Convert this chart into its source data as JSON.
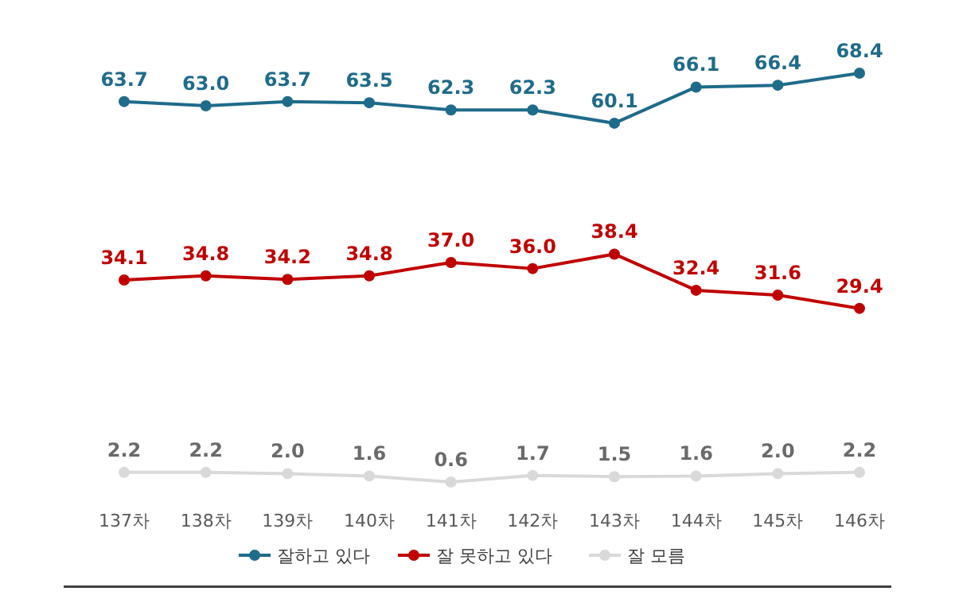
{
  "chart_data": {
    "type": "line",
    "categories": [
      "137차",
      "138차",
      "139차",
      "140차",
      "141차",
      "142차",
      "143차",
      "144차",
      "145차",
      "146차"
    ],
    "series": [
      {
        "name": "잘하고 있다",
        "color": "#1f6b8a",
        "values": [
          63.7,
          63.0,
          63.7,
          63.5,
          62.3,
          62.3,
          60.1,
          66.1,
          66.4,
          68.4
        ],
        "value_labels": [
          "63.7",
          "63.0",
          "63.7",
          "63.5",
          "62.3",
          "62.3",
          "60.1",
          "66.1",
          "66.4",
          "68.4"
        ]
      },
      {
        "name": "잘 못하고 있다",
        "color": "#c00000",
        "values": [
          34.1,
          34.8,
          34.2,
          34.8,
          37.0,
          36.0,
          38.4,
          32.4,
          31.6,
          29.4
        ],
        "value_labels": [
          "34.1",
          "34.8",
          "34.2",
          "34.8",
          "37.0",
          "36.0",
          "38.4",
          "32.4",
          "31.6",
          "29.4"
        ]
      },
      {
        "name": "잘 모름",
        "color": "#d9d9d9",
        "values": [
          2.2,
          2.2,
          2.0,
          1.6,
          0.6,
          1.7,
          1.5,
          1.6,
          2.0,
          2.2
        ],
        "value_labels": [
          "2.2",
          "2.2",
          "2.0",
          "1.6",
          "0.6",
          "1.7",
          "1.5",
          "1.6",
          "2.0",
          "2.2"
        ]
      }
    ],
    "legend": "bottom",
    "marker": "circle",
    "line_style": "solid",
    "tick_labels": "x"
  }
}
